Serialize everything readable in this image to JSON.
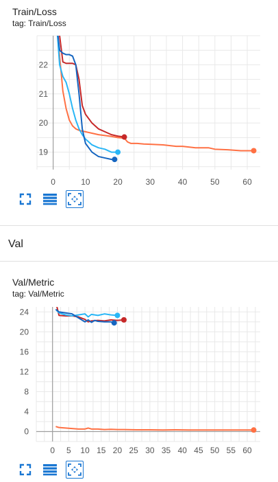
{
  "cards": [
    {
      "title": "Train/Loss",
      "tag": "tag: Train/Loss"
    },
    {
      "title": "Val/Metric",
      "tag": "tag: Val/Metric"
    }
  ],
  "section": {
    "title": "Val"
  },
  "colors": {
    "accent": "#1976d2",
    "grid": "#e0e0e0",
    "axis": "#9e9e9e"
  },
  "toolbar_icons": [
    "fullscreen-icon",
    "data-table-icon",
    "fit-domain-icon"
  ],
  "chart_data": [
    {
      "type": "line",
      "title": "Train/Loss",
      "xlabel": "",
      "ylabel": "",
      "xlim": [
        -5,
        64
      ],
      "ylim": [
        18.4,
        23.0
      ],
      "x_ticks": [
        0,
        10,
        20,
        30,
        40,
        50,
        60
      ],
      "y_ticks": [
        19,
        20,
        21,
        22
      ],
      "grid": true,
      "series": [
        {
          "color": "#ff7043",
          "x": [
            1,
            2,
            3,
            4,
            5,
            6,
            7,
            8,
            9,
            10,
            12,
            14,
            16,
            18,
            20,
            22,
            23,
            24,
            26,
            28,
            30,
            34,
            38,
            40,
            44,
            48,
            50,
            54,
            58,
            60,
            62
          ],
          "y": [
            23.5,
            22.3,
            21.1,
            20.5,
            20.1,
            19.9,
            19.8,
            19.75,
            19.72,
            19.7,
            19.65,
            19.6,
            19.57,
            19.54,
            19.5,
            19.48,
            19.35,
            19.3,
            19.3,
            19.28,
            19.27,
            19.25,
            19.2,
            19.2,
            19.15,
            19.15,
            19.1,
            19.08,
            19.05,
            19.05,
            19.05
          ]
        },
        {
          "color": "#c62828",
          "x": [
            1,
            2,
            3,
            4,
            5,
            6,
            7,
            8,
            9,
            10,
            12,
            14,
            16,
            18,
            20,
            22
          ],
          "y": [
            23.5,
            23.0,
            22.1,
            22.05,
            22.05,
            22.05,
            22.0,
            21.5,
            20.6,
            20.3,
            20.0,
            19.8,
            19.7,
            19.6,
            19.55,
            19.52
          ]
        },
        {
          "color": "#29b6f6",
          "x": [
            1,
            2,
            3,
            4,
            5,
            6,
            7,
            8,
            9,
            10,
            12,
            14,
            16,
            18,
            20
          ],
          "y": [
            23.5,
            22.0,
            21.6,
            21.4,
            21.0,
            20.5,
            20.1,
            19.8,
            19.6,
            19.45,
            19.25,
            19.15,
            19.1,
            19.0,
            19.0
          ]
        },
        {
          "color": "#1565c0",
          "x": [
            1,
            2,
            3,
            4,
            5,
            6,
            7,
            8,
            9,
            10,
            12,
            14,
            16,
            18,
            19
          ],
          "y": [
            23.5,
            22.5,
            22.4,
            22.35,
            22.35,
            22.3,
            22.0,
            21.0,
            19.8,
            19.3,
            19.0,
            18.85,
            18.8,
            18.75,
            18.75
          ]
        }
      ]
    },
    {
      "type": "line",
      "title": "Val/Metric",
      "xlabel": "",
      "ylabel": "",
      "xlim": [
        -5,
        64
      ],
      "ylim": [
        -2,
        25
      ],
      "x_ticks": [
        0,
        5,
        10,
        15,
        20,
        25,
        30,
        35,
        40,
        45,
        50,
        55,
        60
      ],
      "y_ticks": [
        0,
        4,
        8,
        12,
        16,
        20,
        24
      ],
      "grid": true,
      "series": [
        {
          "color": "#ff7043",
          "x": [
            1,
            2,
            4,
            6,
            8,
            10,
            11,
            12,
            14,
            16,
            18,
            20,
            22,
            26,
            30,
            34,
            38,
            42,
            46,
            50,
            54,
            58,
            62
          ],
          "y": [
            1.0,
            0.8,
            0.7,
            0.6,
            0.5,
            0.5,
            0.7,
            0.5,
            0.5,
            0.4,
            0.45,
            0.4,
            0.4,
            0.35,
            0.35,
            0.3,
            0.35,
            0.3,
            0.3,
            0.3,
            0.3,
            0.3,
            0.3
          ]
        },
        {
          "color": "#c62828",
          "x": [
            1,
            2,
            4,
            6,
            8,
            10,
            11,
            12,
            14,
            16,
            18,
            20,
            22
          ],
          "y": [
            26,
            23.3,
            23.2,
            23.2,
            23.0,
            22.5,
            22.0,
            22.2,
            22.3,
            22.2,
            22.4,
            22.3,
            22.4
          ]
        },
        {
          "color": "#29b6f6",
          "x": [
            1,
            2,
            4,
            6,
            8,
            10,
            11,
            12,
            14,
            16,
            18,
            20
          ],
          "y": [
            24.5,
            23.8,
            23.4,
            23.2,
            23.4,
            23.6,
            23.0,
            23.5,
            23.3,
            23.6,
            23.4,
            23.3
          ]
        },
        {
          "color": "#1565c0",
          "x": [
            1,
            2,
            4,
            6,
            8,
            10,
            11,
            12,
            13,
            14,
            16,
            18,
            19
          ],
          "y": [
            24.5,
            24.0,
            23.8,
            23.6,
            22.8,
            22.0,
            22.4,
            21.9,
            22.3,
            22.1,
            22.0,
            22.0,
            21.8
          ]
        }
      ]
    }
  ]
}
